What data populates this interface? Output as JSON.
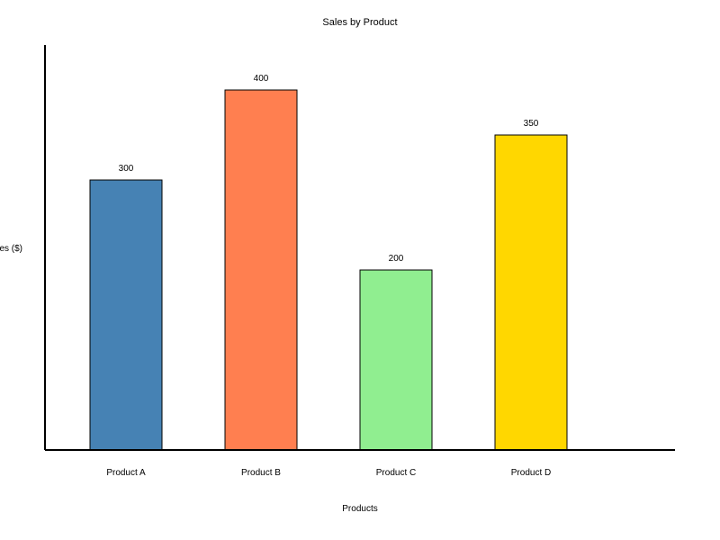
{
  "chart_data": {
    "type": "bar",
    "title": "Sales by Product",
    "xlabel": "Products",
    "ylabel": "Sales ($)",
    "categories": [
      "Product A",
      "Product B",
      "Product C",
      "Product D"
    ],
    "values": [
      300,
      400,
      200,
      350
    ],
    "data_labels": [
      "300",
      "400",
      "200",
      "350"
    ],
    "colors": [
      "#4682B4",
      "#FF7F50",
      "#90EE90",
      "#FFD700"
    ],
    "ylim": [
      0,
      450
    ],
    "grid": false,
    "legend": "none"
  }
}
